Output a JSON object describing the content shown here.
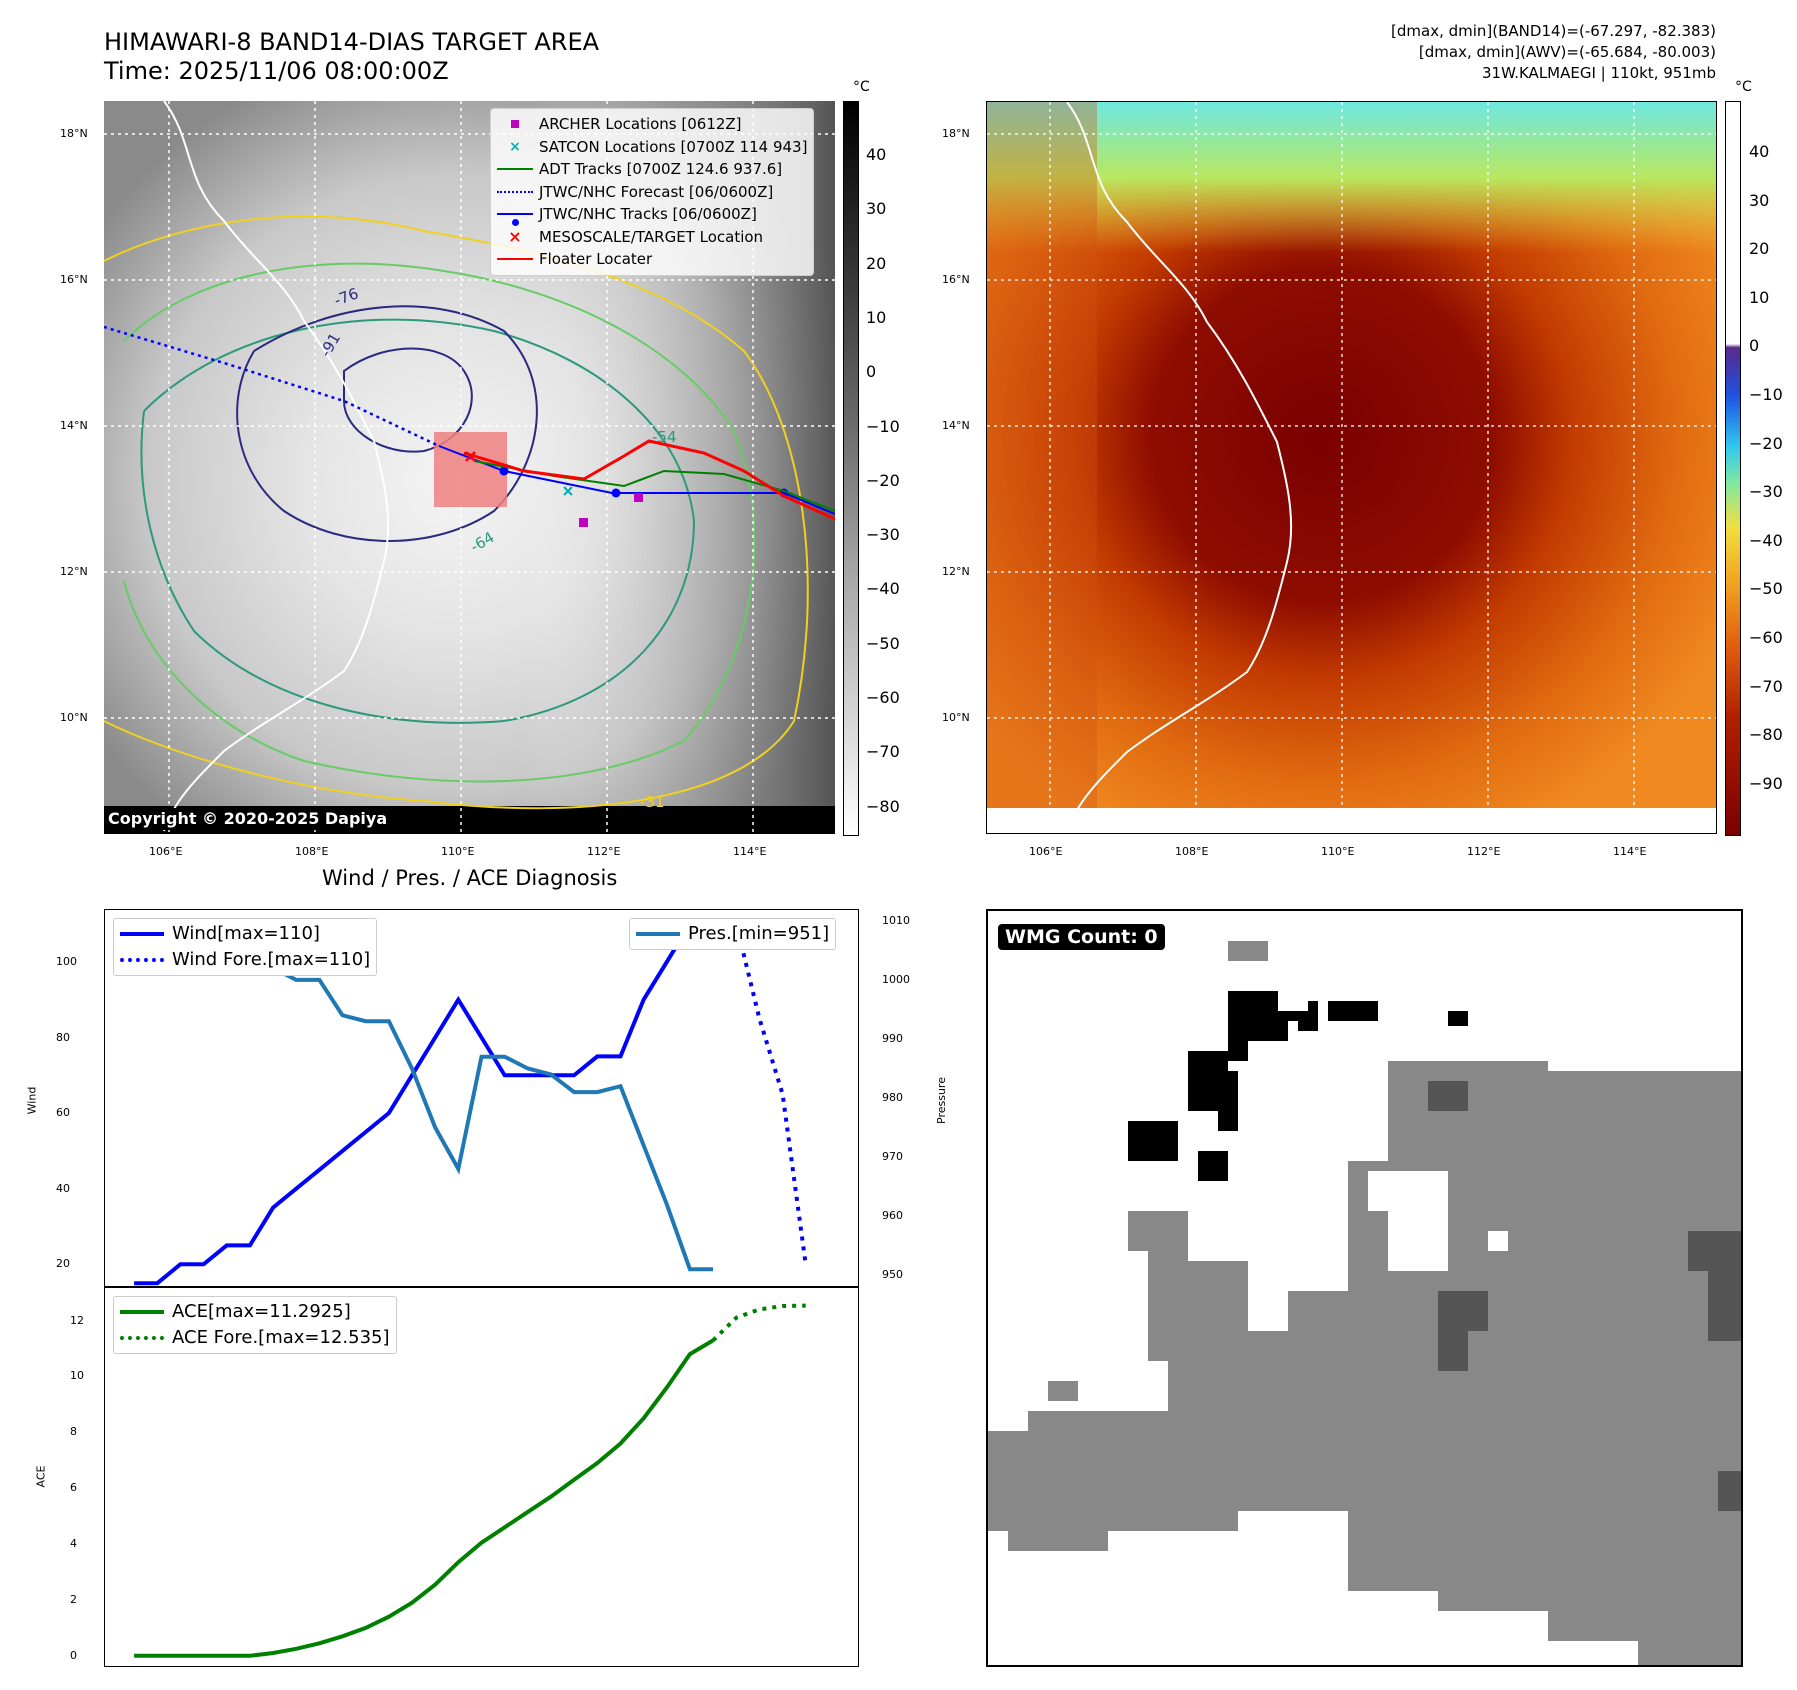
{
  "header": {
    "title_line1": "HIMAWARI-8 BAND14-DIAS TARGET AREA",
    "title_line2": "Time: 2025/11/06 08:00:00Z",
    "info_line1": "[dmax, dmin](BAND14)=(-67.297, -82.383)",
    "info_line2": "[dmax, dmin](AWV)=(-65.684, -80.003)",
    "info_line3": "31W.KALMAEGI | 110kt, 951mb"
  },
  "map_axes": {
    "lat_labels": [
      "18°N",
      "16°N",
      "14°N",
      "12°N",
      "10°N"
    ],
    "lon_labels": [
      "106°E",
      "108°E",
      "110°E",
      "112°E",
      "114°E"
    ]
  },
  "ir_panel": {
    "colorbar_unit": "°C",
    "colorbar_ticks": [
      "40",
      "30",
      "20",
      "10",
      "0",
      "−10",
      "−20",
      "−30",
      "−40",
      "−50",
      "−60",
      "−70",
      "−80"
    ],
    "copyright": "Copyright © 2020-2025 Dapiya",
    "contour_labels": [
      "-76",
      "-64",
      "-54",
      "-31",
      "-91"
    ],
    "legend": [
      {
        "label": "ARCHER Locations [0612Z]",
        "color": "#c000c0",
        "icon": "square-marker"
      },
      {
        "label": "SATCON Locations [0700Z 114 943]",
        "color": "#00b0b0",
        "icon": "x-marker"
      },
      {
        "label": "ADT Tracks [0700Z 124.6 937.6]",
        "color": "#008000",
        "icon": "line"
      },
      {
        "label": "JTWC/NHC Forecast [06/0600Z]",
        "color": "#0000ff",
        "icon": "dotted-line"
      },
      {
        "label": "JTWC/NHC Tracks [06/0600Z]",
        "color": "#0000ff",
        "icon": "line-dot"
      },
      {
        "label": "MESOSCALE/TARGET Location",
        "color": "#ff0000",
        "icon": "x-marker"
      },
      {
        "label": "Floater Locater",
        "color": "#ff0000",
        "icon": "line"
      }
    ]
  },
  "awv_panel": {
    "colorbar_unit": "°C",
    "colorbar_ticks": [
      "40",
      "30",
      "20",
      "10",
      "0",
      "−10",
      "−20",
      "−30",
      "−40",
      "−50",
      "−60",
      "−70",
      "−80",
      "−90"
    ]
  },
  "diagnosis": {
    "title": "Wind / Pres. / ACE Diagnosis",
    "wind_ylabel": "Wind",
    "pres_ylabel": "Pressure",
    "ace_ylabel": "ACE",
    "legend_wind": "Wind[max=110]",
    "legend_wind_fore": "Wind Fore.[max=110]",
    "legend_pres": "Pres.[min=951]",
    "legend_ace": "ACE[max=11.2925]",
    "legend_ace_fore": "ACE Fore.[max=12.535]",
    "wind_ticks": [
      "100",
      "80",
      "60",
      "40",
      "20"
    ],
    "pres_ticks": [
      "1010",
      "1000",
      "990",
      "980",
      "970",
      "960",
      "950"
    ],
    "ace_ticks": [
      "12",
      "10",
      "8",
      "6",
      "4",
      "2",
      "0"
    ]
  },
  "wmg_panel": {
    "label": "WMG Count: 0"
  },
  "chart_data": [
    {
      "type": "line",
      "name": "wind-pressure",
      "x": [
        0,
        1,
        2,
        3,
        4,
        5,
        6,
        7,
        8,
        9,
        10,
        11,
        12,
        13,
        14,
        15,
        16,
        17,
        18,
        19,
        20,
        21,
        22,
        23,
        24,
        25,
        26,
        27,
        28,
        29
      ],
      "series": [
        {
          "name": "Wind[max=110]",
          "axis": "left",
          "color": "#0000ff",
          "style": "solid",
          "values": [
            15,
            15,
            20,
            20,
            25,
            25,
            35,
            40,
            45,
            50,
            55,
            60,
            70,
            80,
            90,
            80,
            70,
            70,
            70,
            70,
            75,
            75,
            90,
            100,
            110,
            110,
            null,
            null,
            null,
            null
          ]
        },
        {
          "name": "Wind Fore.[max=110]",
          "axis": "left",
          "color": "#0000ff",
          "style": "dotted",
          "x": [
            26,
            27,
            28,
            29
          ],
          "values": [
            110,
            85,
            65,
            20
          ]
        },
        {
          "name": "Pres.[min=951]",
          "axis": "right",
          "color": "#1f77b4",
          "style": "solid",
          "values": [
            1010,
            1008,
            1008,
            1008,
            1006,
            1006,
            1002,
            1000,
            1000,
            994,
            993,
            993,
            985,
            975,
            968,
            987,
            987,
            985,
            984,
            981,
            981,
            982,
            972,
            962,
            951,
            951,
            null,
            null,
            null,
            null
          ]
        }
      ],
      "ylim_left": [
        14,
        114
      ],
      "ylim_right": [
        948,
        1012
      ],
      "ylabel_left": "Wind",
      "ylabel_right": "Pressure"
    },
    {
      "type": "line",
      "name": "ace",
      "x": [
        0,
        1,
        2,
        3,
        4,
        5,
        6,
        7,
        8,
        9,
        10,
        11,
        12,
        13,
        14,
        15,
        16,
        17,
        18,
        19,
        20,
        21,
        22,
        23,
        24,
        25,
        26,
        27,
        28,
        29
      ],
      "series": [
        {
          "name": "ACE[max=11.2925]",
          "color": "#008000",
          "style": "solid",
          "values": [
            0,
            0,
            0,
            0,
            0,
            0,
            0.1,
            0.25,
            0.45,
            0.7,
            1.0,
            1.4,
            1.9,
            2.55,
            3.35,
            4.05,
            4.6,
            5.15,
            5.7,
            6.3,
            6.9,
            7.6,
            8.5,
            9.6,
            10.8,
            11.29,
            null,
            null,
            null,
            null
          ]
        },
        {
          "name": "ACE Fore.[max=12.535]",
          "color": "#008000",
          "style": "dotted",
          "x": [
            25,
            26,
            27,
            28,
            29
          ],
          "values": [
            11.29,
            12.1,
            12.4,
            12.52,
            12.535
          ]
        }
      ],
      "ylim": [
        -0.4,
        13.2
      ],
      "ylabel": "ACE"
    }
  ]
}
